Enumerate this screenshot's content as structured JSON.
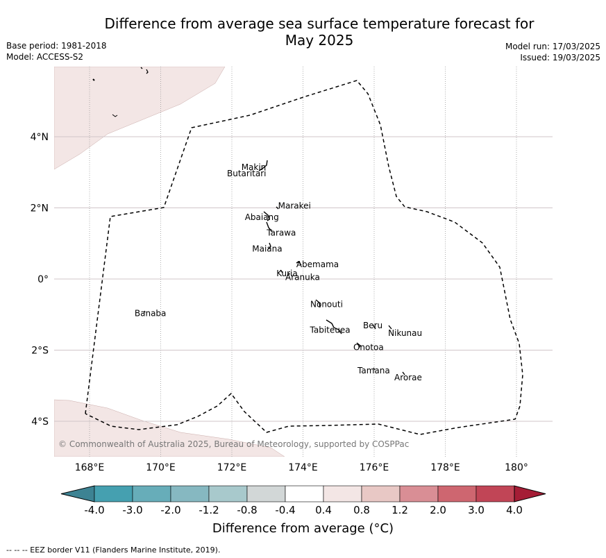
{
  "title": "Difference from average sea surface temperature forecast for May 2025",
  "title_lines": [
    "Difference from average sea surface temperature forecast for",
    "May 2025"
  ],
  "meta_left": [
    "Base period: 1981-2018",
    "Model: ACCESS-S2"
  ],
  "meta_right": [
    "Model run: 17/03/2025",
    "Issued: 19/03/2025"
  ],
  "map": {
    "lon_range": [
      167,
      181
    ],
    "lat_range": [
      -5,
      6
    ],
    "lon_ticks": [
      {
        "value": 168,
        "label": "168°E"
      },
      {
        "value": 170,
        "label": "170°E"
      },
      {
        "value": 172,
        "label": "172°E"
      },
      {
        "value": 174,
        "label": "174°E"
      },
      {
        "value": 176,
        "label": "176°E"
      },
      {
        "value": 178,
        "label": "178°E"
      },
      {
        "value": 180,
        "label": "180°"
      }
    ],
    "lat_ticks": [
      {
        "value": 4,
        "label": "4°N"
      },
      {
        "value": 2,
        "label": "2°N"
      },
      {
        "value": 0,
        "label": "0°"
      },
      {
        "value": -2,
        "label": "2°S"
      },
      {
        "value": -4,
        "label": "4°S"
      }
    ],
    "anomaly_fill_color": "#f3e6e5",
    "islands": [
      {
        "name": "Makin",
        "lon": 172.95,
        "lat": 3.2
      },
      {
        "name": "Butaritari",
        "lon": 172.8,
        "lat": 2.95
      },
      {
        "name": "Marakei",
        "lon": 173.3,
        "lat": 2.0
      },
      {
        "name": "Abaiang",
        "lon": 172.95,
        "lat": 1.8
      },
      {
        "name": "Tarawa",
        "lon": 173.0,
        "lat": 1.4
      },
      {
        "name": "Maiana",
        "lon": 173.0,
        "lat": 0.95
      },
      {
        "name": "Abemama",
        "lon": 173.85,
        "lat": 0.45
      },
      {
        "name": "Kuria",
        "lon": 173.35,
        "lat": 0.2
      },
      {
        "name": "Aranuka",
        "lon": 173.6,
        "lat": 0.15
      },
      {
        "name": "Nonouti",
        "lon": 174.4,
        "lat": -0.65
      },
      {
        "name": "Banaba",
        "lon": 169.5,
        "lat": -0.85
      },
      {
        "name": "Tabiteuea",
        "lon": 174.8,
        "lat": -1.3
      },
      {
        "name": "Beru",
        "lon": 176.0,
        "lat": -1.35
      },
      {
        "name": "Nikunau",
        "lon": 176.45,
        "lat": -1.35
      },
      {
        "name": "Onotoa",
        "lon": 175.55,
        "lat": -1.8
      },
      {
        "name": "Tamana",
        "lon": 176.0,
        "lat": -2.5
      },
      {
        "name": "Arorae",
        "lon": 176.8,
        "lat": -2.65
      }
    ],
    "copyright": "© Commonwealth of Australia 2025, Bureau of Meteorology, supported by COSPPac"
  },
  "colorbar": {
    "labels": [
      "-4.0",
      "-3.0",
      "-2.0",
      "-1.2",
      "-0.8",
      "-0.4",
      "0.4",
      "0.8",
      "1.2",
      "2.0",
      "3.0",
      "4.0"
    ],
    "colors": [
      "#45a0b0",
      "#67adb9",
      "#86b8c1",
      "#a8c9cc",
      "#d2d7d7",
      "#ffffff",
      "#f3e6e5",
      "#e8c8c5",
      "#d98e95",
      "#ce6670",
      "#c14556"
    ],
    "under_color": "#3d8393",
    "over_color": "#a51d36",
    "title": "Difference from average (°C)"
  },
  "footnote": "--  --  -- EEZ border V11 (Flanders Marine Institute, 2019)."
}
